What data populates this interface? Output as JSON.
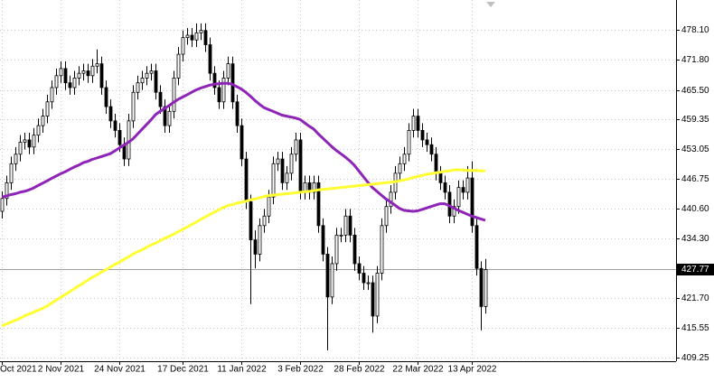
{
  "chart_data": {
    "type": "candlestick",
    "categories": [
      "Oct 2021",
      null,
      null,
      null,
      null,
      null,
      null,
      null,
      null,
      null,
      null,
      null,
      null,
      "2 Nov 2021",
      null,
      null,
      null,
      null,
      null,
      null,
      null,
      null,
      null,
      null,
      null,
      null,
      "24 Nov 2021",
      null,
      null,
      null,
      null,
      null,
      null,
      null,
      null,
      null,
      null,
      null,
      null,
      null,
      "17 Dec 2021",
      null,
      null,
      null,
      null,
      null,
      null,
      null,
      null,
      null,
      null,
      null,
      null,
      "11 Jan 2022",
      null,
      null,
      null,
      null,
      null,
      null,
      null,
      null,
      null,
      null,
      null,
      null,
      "3 Feb 2022",
      null,
      null,
      null,
      null,
      null,
      null,
      null,
      null,
      null,
      null,
      null,
      null,
      "28 Feb 2022",
      null,
      null,
      null,
      null,
      null,
      null,
      null,
      null,
      null,
      null,
      null,
      null,
      "22 Mar 2022",
      null,
      null,
      null,
      null,
      null,
      null,
      null,
      null,
      null,
      null,
      null,
      "13 Apr 2022",
      null,
      null,
      null
    ],
    "open": [
      440,
      442.7,
      446,
      450,
      452,
      454.5,
      455,
      453.5,
      456,
      458,
      460,
      463,
      466,
      468.5,
      470,
      467,
      466,
      468,
      469,
      469.5,
      468.5,
      470.5,
      471,
      466,
      462,
      459,
      457,
      454,
      451,
      459,
      465,
      467,
      468,
      469,
      469.5,
      465,
      462,
      458,
      461,
      468,
      473,
      476.5,
      477,
      476,
      477.5,
      478,
      475,
      469,
      466,
      463,
      468,
      471,
      463,
      458,
      451,
      442,
      434,
      431,
      437,
      439,
      443,
      450,
      451,
      446,
      448,
      452,
      455,
      444,
      446,
      444,
      446,
      437,
      431,
      422,
      429,
      435,
      435,
      439,
      435,
      429,
      427,
      425,
      425,
      418,
      427,
      437,
      441,
      444,
      448,
      450,
      452,
      457,
      460,
      457,
      455,
      454,
      452,
      448,
      446,
      444,
      439,
      441,
      445,
      444,
      447,
      437,
      428,
      420
    ],
    "high": [
      444.2,
      447.5,
      451.5,
      453.5,
      456,
      456.5,
      456.5,
      457.5,
      459.5,
      461.5,
      464.5,
      467.5,
      470,
      471.5,
      471.5,
      468.5,
      469.5,
      470.5,
      471,
      471,
      472,
      474,
      472.5,
      467.5,
      463.5,
      460.5,
      458.5,
      455.5,
      460.5,
      466.5,
      468.5,
      469.5,
      470.5,
      471,
      471,
      466.5,
      463.5,
      462.5,
      469.5,
      474.5,
      478,
      478.5,
      478.5,
      479.5,
      479.5,
      479.5,
      476.5,
      470.5,
      467.5,
      469.5,
      472.5,
      472.5,
      464.5,
      459.5,
      452.5,
      443.5,
      436,
      438.5,
      440.5,
      444.5,
      451.5,
      452.5,
      452.5,
      449.5,
      453.5,
      456.5,
      456.5,
      447.5,
      447.5,
      447.5,
      447.5,
      438.5,
      432.5,
      430.5,
      436.5,
      436.5,
      440.5,
      440.5,
      436.5,
      430.5,
      428.5,
      426.5,
      426.5,
      428.5,
      438.5,
      442.5,
      445.5,
      449.5,
      451.5,
      453.5,
      458.5,
      461.5,
      461.5,
      458.5,
      456.5,
      455.5,
      453.5,
      449.5,
      447.5,
      445.5,
      442.5,
      446.5,
      446.5,
      449.5,
      450.5,
      438.5,
      429.5,
      430
    ],
    "low": [
      438.5,
      441.2,
      444.5,
      448.5,
      450.5,
      453,
      452,
      452,
      454.5,
      456.5,
      458.5,
      461.5,
      464.5,
      467,
      465.5,
      464.5,
      464.5,
      466.5,
      467.5,
      467,
      467,
      469,
      464.5,
      460.5,
      457.5,
      455.5,
      452.5,
      449.5,
      449.5,
      457.5,
      463.5,
      465.5,
      466.5,
      467.5,
      463.5,
      460.5,
      456.5,
      456.5,
      459.5,
      466.5,
      471.5,
      475,
      474.5,
      474.5,
      476,
      473.5,
      467.5,
      464.5,
      461.5,
      461.5,
      466.5,
      461.5,
      456.5,
      449.5,
      440.5,
      420.5,
      428,
      429.5,
      435.5,
      437.5,
      441.5,
      448.5,
      444.5,
      444.5,
      446.5,
      450.5,
      442.5,
      442.5,
      442.5,
      442.5,
      435.5,
      429.5,
      410.8,
      420.5,
      427.5,
      433.5,
      433.5,
      433.5,
      427.5,
      425.5,
      423.5,
      423.5,
      414.5,
      416.5,
      425.5,
      435.5,
      439.5,
      442.5,
      446.5,
      448.5,
      450.5,
      455.5,
      455.5,
      453.5,
      452.5,
      450.5,
      446.5,
      444.5,
      442.5,
      437.5,
      437.5,
      439.5,
      442.5,
      442.5,
      435.5,
      426.5,
      415,
      418.5
    ],
    "close": [
      442.7,
      446,
      450,
      452,
      454.5,
      455,
      453.5,
      456,
      458,
      460,
      463,
      466,
      468.5,
      470,
      467,
      466,
      468,
      469,
      469.5,
      468.5,
      470.5,
      471,
      466,
      462,
      459,
      457,
      454,
      451,
      459,
      465,
      467,
      468,
      469,
      469.5,
      465,
      462,
      458,
      461,
      468,
      473,
      476.5,
      477,
      476,
      477.5,
      478,
      475,
      469,
      466,
      463,
      468,
      471,
      463,
      458,
      451,
      442,
      434,
      431,
      437,
      439,
      443,
      450,
      451,
      446,
      448,
      452,
      455,
      444,
      446,
      444,
      446,
      437,
      431,
      422,
      429,
      435,
      435,
      439,
      435,
      429,
      427,
      425,
      425,
      418,
      427,
      437,
      441,
      444,
      448,
      450,
      452,
      457,
      460,
      457,
      455,
      454,
      452,
      448,
      446,
      444,
      439,
      441,
      445,
      444,
      447,
      437,
      428,
      420,
      427.77
    ],
    "series": [
      {
        "color": "#8e24b8",
        "values": [
          443,
          443.2,
          443.5,
          443.7,
          444,
          444.2,
          444.5,
          444.9,
          445.4,
          445.9,
          446.4,
          446.9,
          447.4,
          447.9,
          448.3,
          448.8,
          449.3,
          449.7,
          450.2,
          450.5,
          450.9,
          451.2,
          451.5,
          451.8,
          452.1,
          452.7,
          453.3,
          453.9,
          454.5,
          455.2,
          456.2,
          457.2,
          458.2,
          459.2,
          460.3,
          461,
          461.6,
          462.2,
          462.9,
          463.5,
          464,
          464.5,
          465,
          465.5,
          465.9,
          466.2,
          466.5,
          466.7,
          466.8,
          466.9,
          466.9,
          466.7,
          466.2,
          465.7,
          465,
          464.2,
          463.3,
          462.5,
          461.8,
          461.4,
          461,
          460.6,
          460.2,
          460,
          459.8,
          459.6,
          459.3,
          458.6,
          457.9,
          457.3,
          456.3,
          455.4,
          454.5,
          453.6,
          452.8,
          452.1,
          451.4,
          450.6,
          449.7,
          448.5,
          447.3,
          446.1,
          445,
          444.2,
          443.4,
          442.6,
          442,
          441.3,
          440.6,
          440.2,
          440.1,
          440,
          440.1,
          440.4,
          440.7,
          441,
          441.3,
          441.6,
          441.6,
          441.2,
          440.7,
          440.2,
          439.8,
          439.4,
          439,
          438.7,
          438.4,
          438.1
        ]
      },
      {
        "color": "#ffff33",
        "values": [
          415.9,
          416.3,
          416.7,
          417.1,
          417.5,
          418,
          418.4,
          418.8,
          419.2,
          419.6,
          420.1,
          420.7,
          421.3,
          421.9,
          422.5,
          423.1,
          423.7,
          424.3,
          424.9,
          425.5,
          426.1,
          426.6,
          427.2,
          427.7,
          428.3,
          428.8,
          429.3,
          429.9,
          430.4,
          431,
          431.5,
          431.9,
          432.4,
          432.9,
          433.3,
          433.8,
          434.3,
          434.7,
          435.2,
          435.7,
          436.2,
          436.7,
          437.2,
          437.7,
          438.3,
          438.8,
          439.3,
          439.8,
          440.3,
          440.8,
          441.2,
          441.4,
          441.7,
          441.9,
          442.1,
          442.4,
          442.6,
          442.8,
          443.1,
          443.3,
          443.4,
          443.5,
          443.6,
          443.7,
          443.8,
          443.9,
          444,
          444.1,
          444.2,
          444.3,
          444.5,
          444.6,
          444.7,
          444.8,
          444.9,
          445,
          445.1,
          445.2,
          445.3,
          445.4,
          445.5,
          445.6,
          445.7,
          445.8,
          445.9,
          446,
          446.1,
          446.2,
          446.4,
          446.6,
          446.8,
          447.1,
          447.3,
          447.5,
          447.8,
          447.9,
          448.1,
          448.2,
          448.4,
          448.5,
          448.7,
          448.7,
          448.7,
          448.6,
          448.6,
          448.6,
          448.5,
          448.5
        ]
      }
    ],
    "last_price": 427.77,
    "ylim": [
      408.5,
      484.4
    ],
    "yticks": [
      {
        "value": 478.1,
        "label": "478.10"
      },
      {
        "value": 471.8,
        "label": "471.80"
      },
      {
        "value": 465.5,
        "label": "465.50"
      },
      459.35,
      453.05,
      446.75,
      {
        "value": 440.6,
        "label": "440.60"
      },
      {
        "value": 434.3,
        "label": "434.30"
      },
      {
        "value": 421.7,
        "label": "421.70"
      },
      415.55,
      409.25
    ],
    "grid": true,
    "candle_colors": {
      "up": "#ffffff",
      "down": "#000000",
      "outline": "#000000"
    }
  }
}
